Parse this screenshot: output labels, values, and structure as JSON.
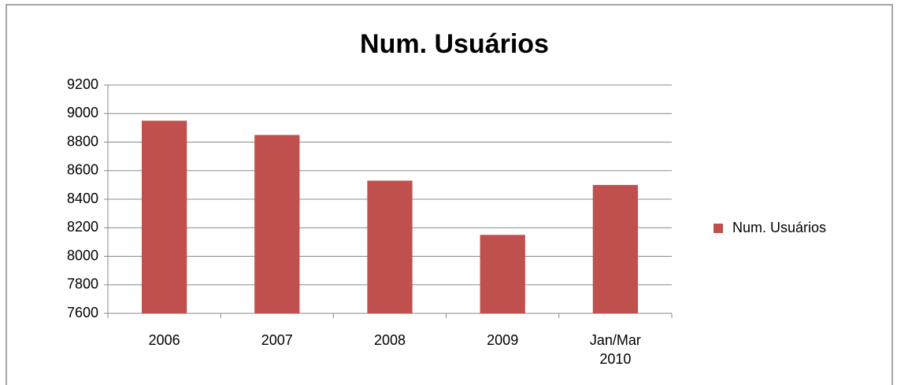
{
  "chart_data": {
    "type": "bar",
    "title": "Num. Usuários",
    "categories": [
      "2006",
      "2007",
      "2008",
      "2009",
      "Jan/Mar 2010"
    ],
    "series": [
      {
        "name": "Num. Usuários",
        "color": "#c0504d",
        "values": [
          8950,
          8850,
          8530,
          8150,
          8500
        ]
      }
    ],
    "ylim": [
      7600,
      9200
    ],
    "yticks": [
      7600,
      7800,
      8000,
      8200,
      8400,
      8600,
      8800,
      9000,
      9200
    ],
    "grid": true,
    "legend": "right"
  }
}
